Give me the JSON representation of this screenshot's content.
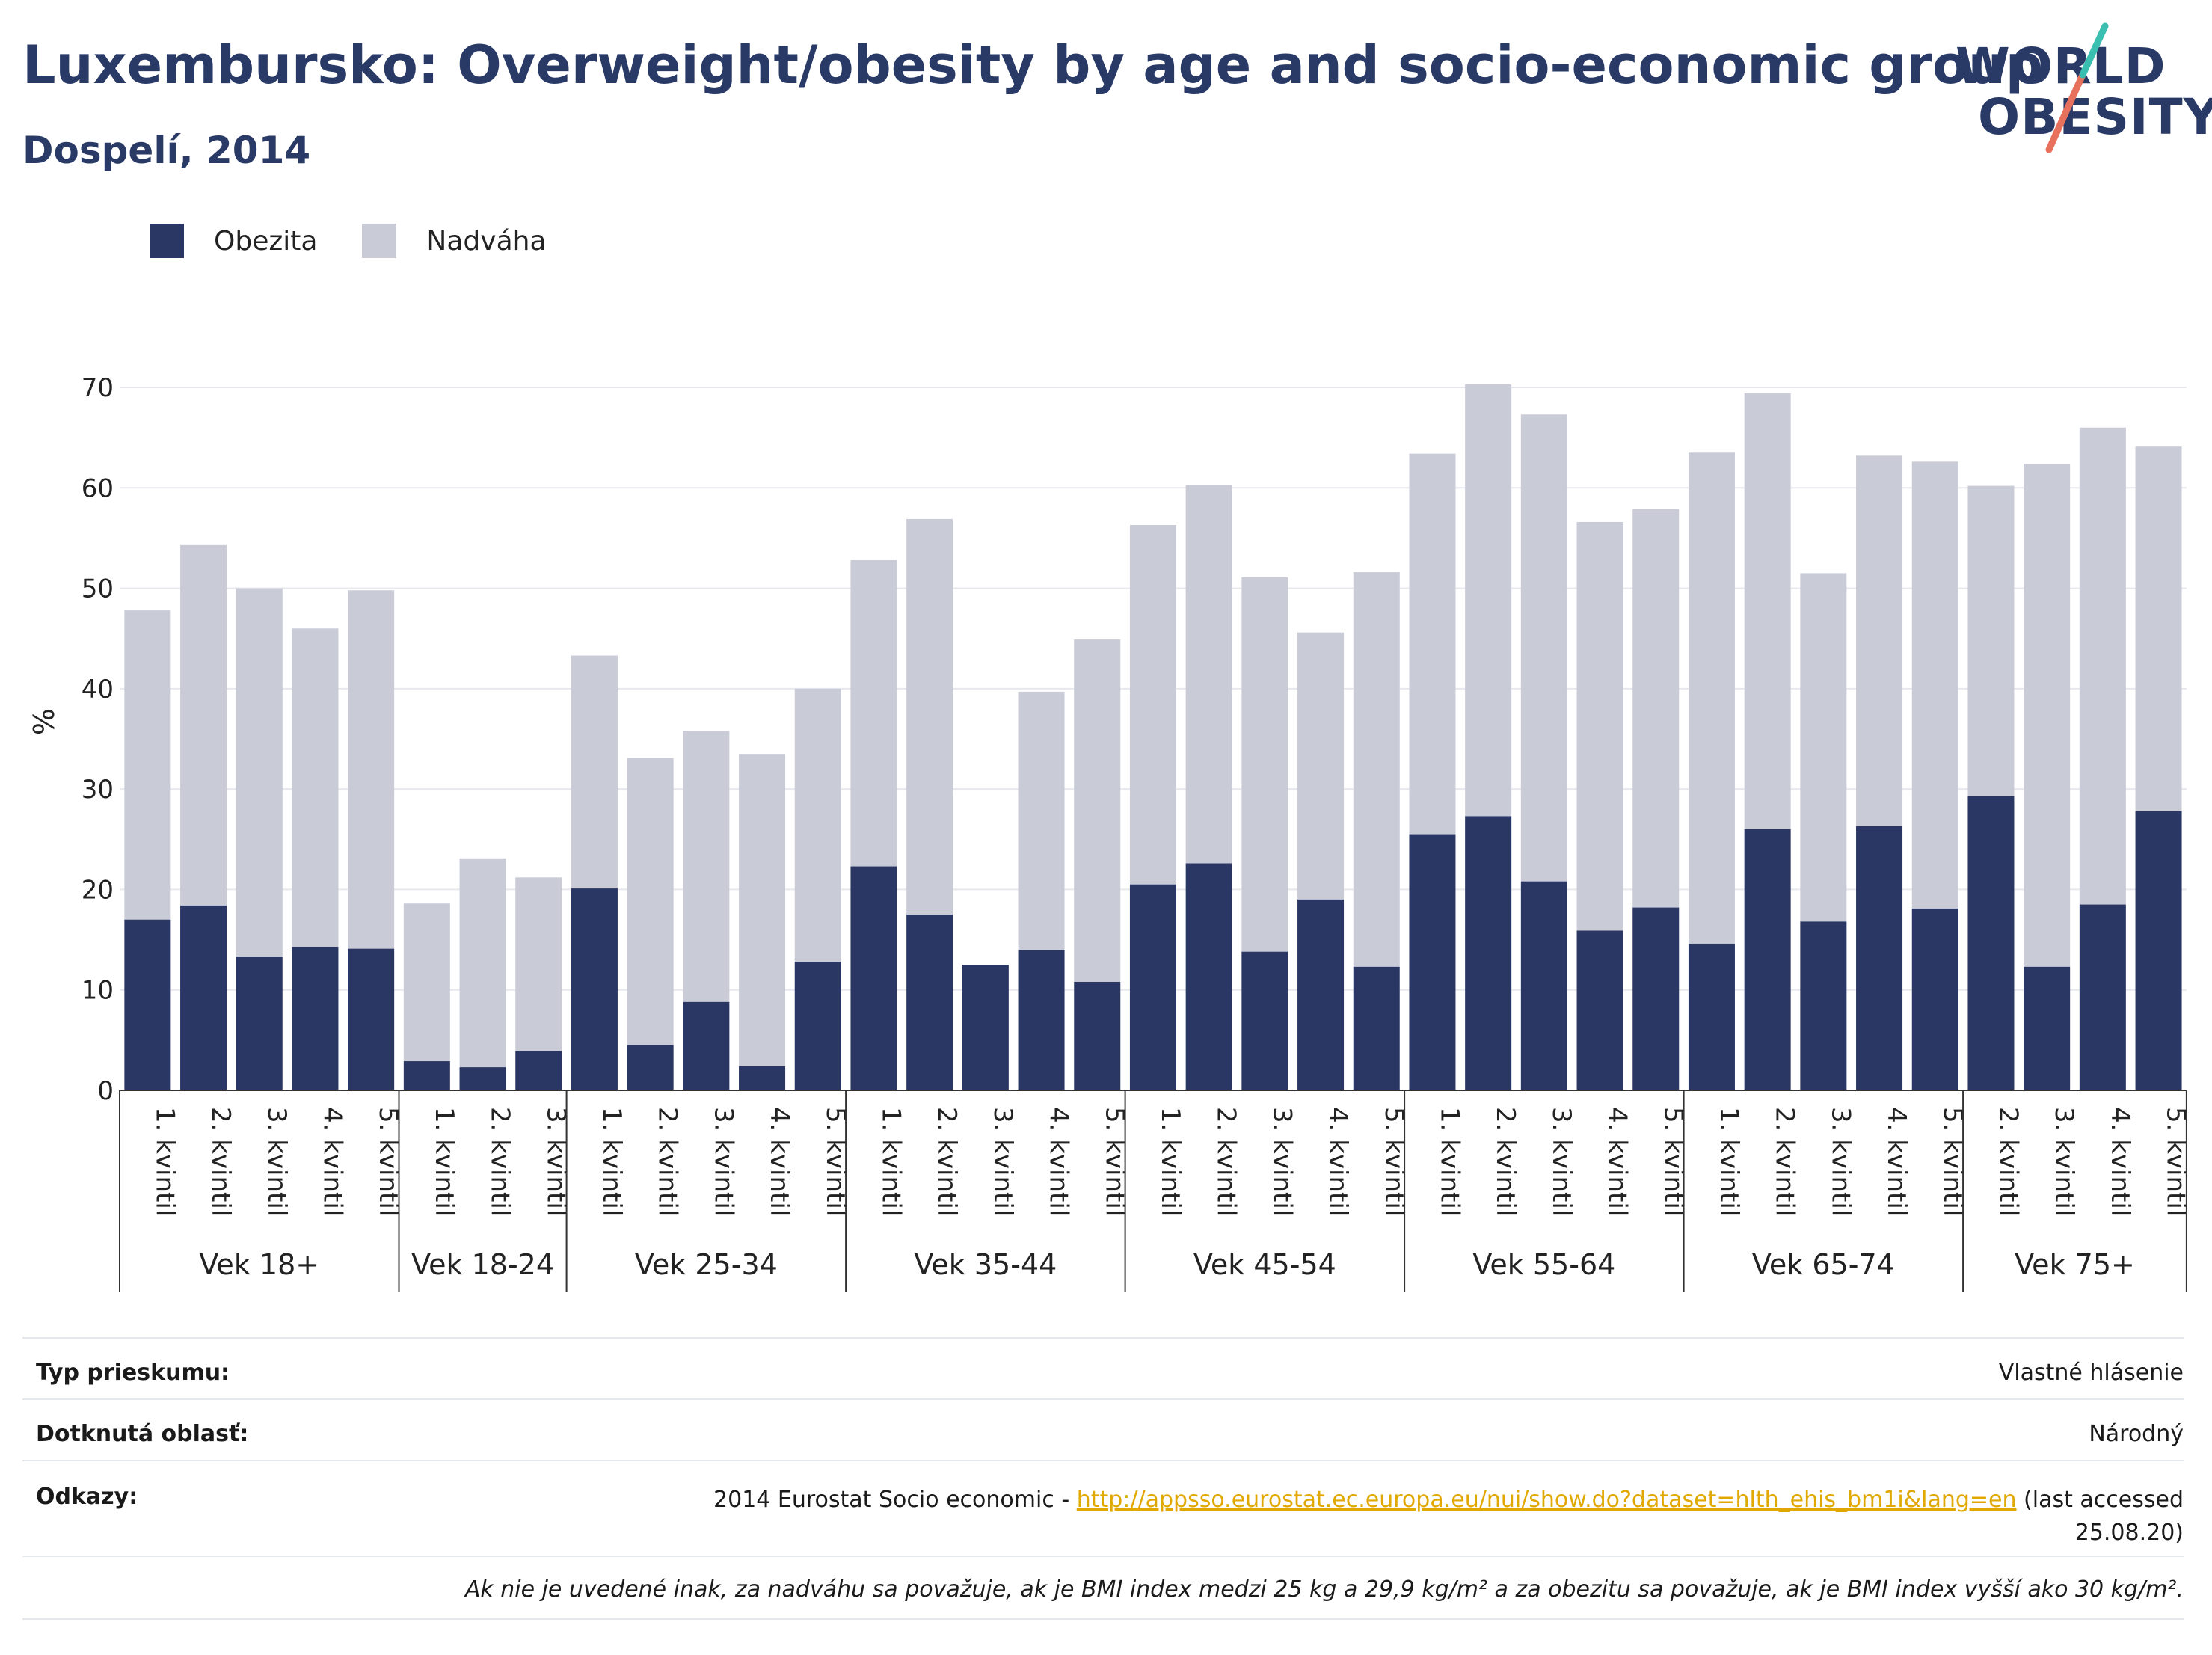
{
  "header": {
    "title": "Luxembursko: Overweight/obesity by age and socio-economic group",
    "subtitle": "Dospelí, 2014"
  },
  "logo": {
    "line1": "WORLD",
    "line2": "OBESITY",
    "text_color": "#2a3a66",
    "accent_teal": "#3bbfb0",
    "accent_coral": "#e8715e"
  },
  "legend": {
    "items": [
      {
        "label": "Obezita",
        "color": "#2a3664"
      },
      {
        "label": "Nadváha",
        "color": "#c9cbd7"
      }
    ]
  },
  "chart_data": {
    "type": "bar",
    "stacked": true,
    "ylabel": "%",
    "ylim": [
      0,
      70
    ],
    "yticks": [
      0,
      10,
      20,
      30,
      40,
      50,
      60,
      70
    ],
    "grid": true,
    "legend_position": "top-left",
    "groups": [
      {
        "label": "Vek 18+",
        "categories": [
          "1. kvintil",
          "2. kvintil",
          "3. kvintil",
          "4. kvintil",
          "5. kvintil"
        ]
      },
      {
        "label": "Vek 18-24",
        "categories": [
          "1. kvintil",
          "2. kvintil",
          "3. kvintil"
        ]
      },
      {
        "label": "Vek 25-34",
        "categories": [
          "1. kvintil",
          "2. kvintil",
          "3. kvintil",
          "4. kvintil",
          "5. kvintil"
        ]
      },
      {
        "label": "Vek 35-44",
        "categories": [
          "1. kvintil",
          "2. kvintil",
          "3. kvintil",
          "4. kvintil",
          "5. kvintil"
        ]
      },
      {
        "label": "Vek 45-54",
        "categories": [
          "1. kvintil",
          "2. kvintil",
          "3. kvintil",
          "4. kvintil",
          "5. kvintil"
        ]
      },
      {
        "label": "Vek 55-64",
        "categories": [
          "1. kvintil",
          "2. kvintil",
          "3. kvintil",
          "4. kvintil",
          "5. kvintil"
        ]
      },
      {
        "label": "Vek 65-74",
        "categories": [
          "1. kvintil",
          "2. kvintil",
          "3. kvintil",
          "4. kvintil",
          "5. kvintil"
        ]
      },
      {
        "label": "Vek 75+",
        "categories": [
          "2. kvintil",
          "3. kvintil",
          "4. kvintil",
          "5. kvintil"
        ]
      }
    ],
    "series": [
      {
        "name": "Obezita",
        "color": "#2a3664",
        "values": [
          17.0,
          18.4,
          13.3,
          14.3,
          14.1,
          2.9,
          2.3,
          3.9,
          20.1,
          4.5,
          8.8,
          2.4,
          12.8,
          22.3,
          17.5,
          12.5,
          14.0,
          10.8,
          20.5,
          22.6,
          13.8,
          19.0,
          12.3,
          25.5,
          27.3,
          20.8,
          15.9,
          18.2,
          14.6,
          26.0,
          16.8,
          26.3,
          18.1,
          29.3,
          12.3,
          18.5,
          27.8
        ]
      },
      {
        "name": "Nadváha",
        "color": "#c9cbd7",
        "values": [
          30.8,
          35.9,
          36.7,
          31.7,
          35.7,
          15.7,
          20.8,
          17.3,
          23.2,
          28.6,
          27.0,
          31.1,
          27.2,
          30.5,
          39.4,
          0.0,
          25.7,
          34.1,
          35.8,
          37.7,
          37.3,
          26.6,
          39.3,
          37.9,
          43.0,
          46.5,
          40.7,
          39.7,
          48.9,
          43.4,
          34.7,
          36.9,
          44.5,
          30.9,
          50.1,
          47.5,
          36.3
        ]
      }
    ]
  },
  "footer": {
    "rows": [
      {
        "label": "Typ prieskumu:",
        "value": "Vlastné hlásenie"
      },
      {
        "label": "Dotknutá oblasť:",
        "value": "Národný"
      }
    ],
    "references": {
      "label": "Odkazy:",
      "prefix": "2014 Eurostat Socio economic - ",
      "link": "http://appsso.eurostat.ec.europa.eu/nui/show.do?dataset=hlth_ehis_bm1i&lang=en",
      "suffix": " (last accessed",
      "date": "25.08.20)"
    },
    "note": "Ak nie je uvedené inak, za nadváhu sa považuje, ak je BMI index medzi 25 kg a 29,9 kg/m² a za obezitu sa považuje, ak je BMI index vyšší ako 30 kg/m²."
  }
}
